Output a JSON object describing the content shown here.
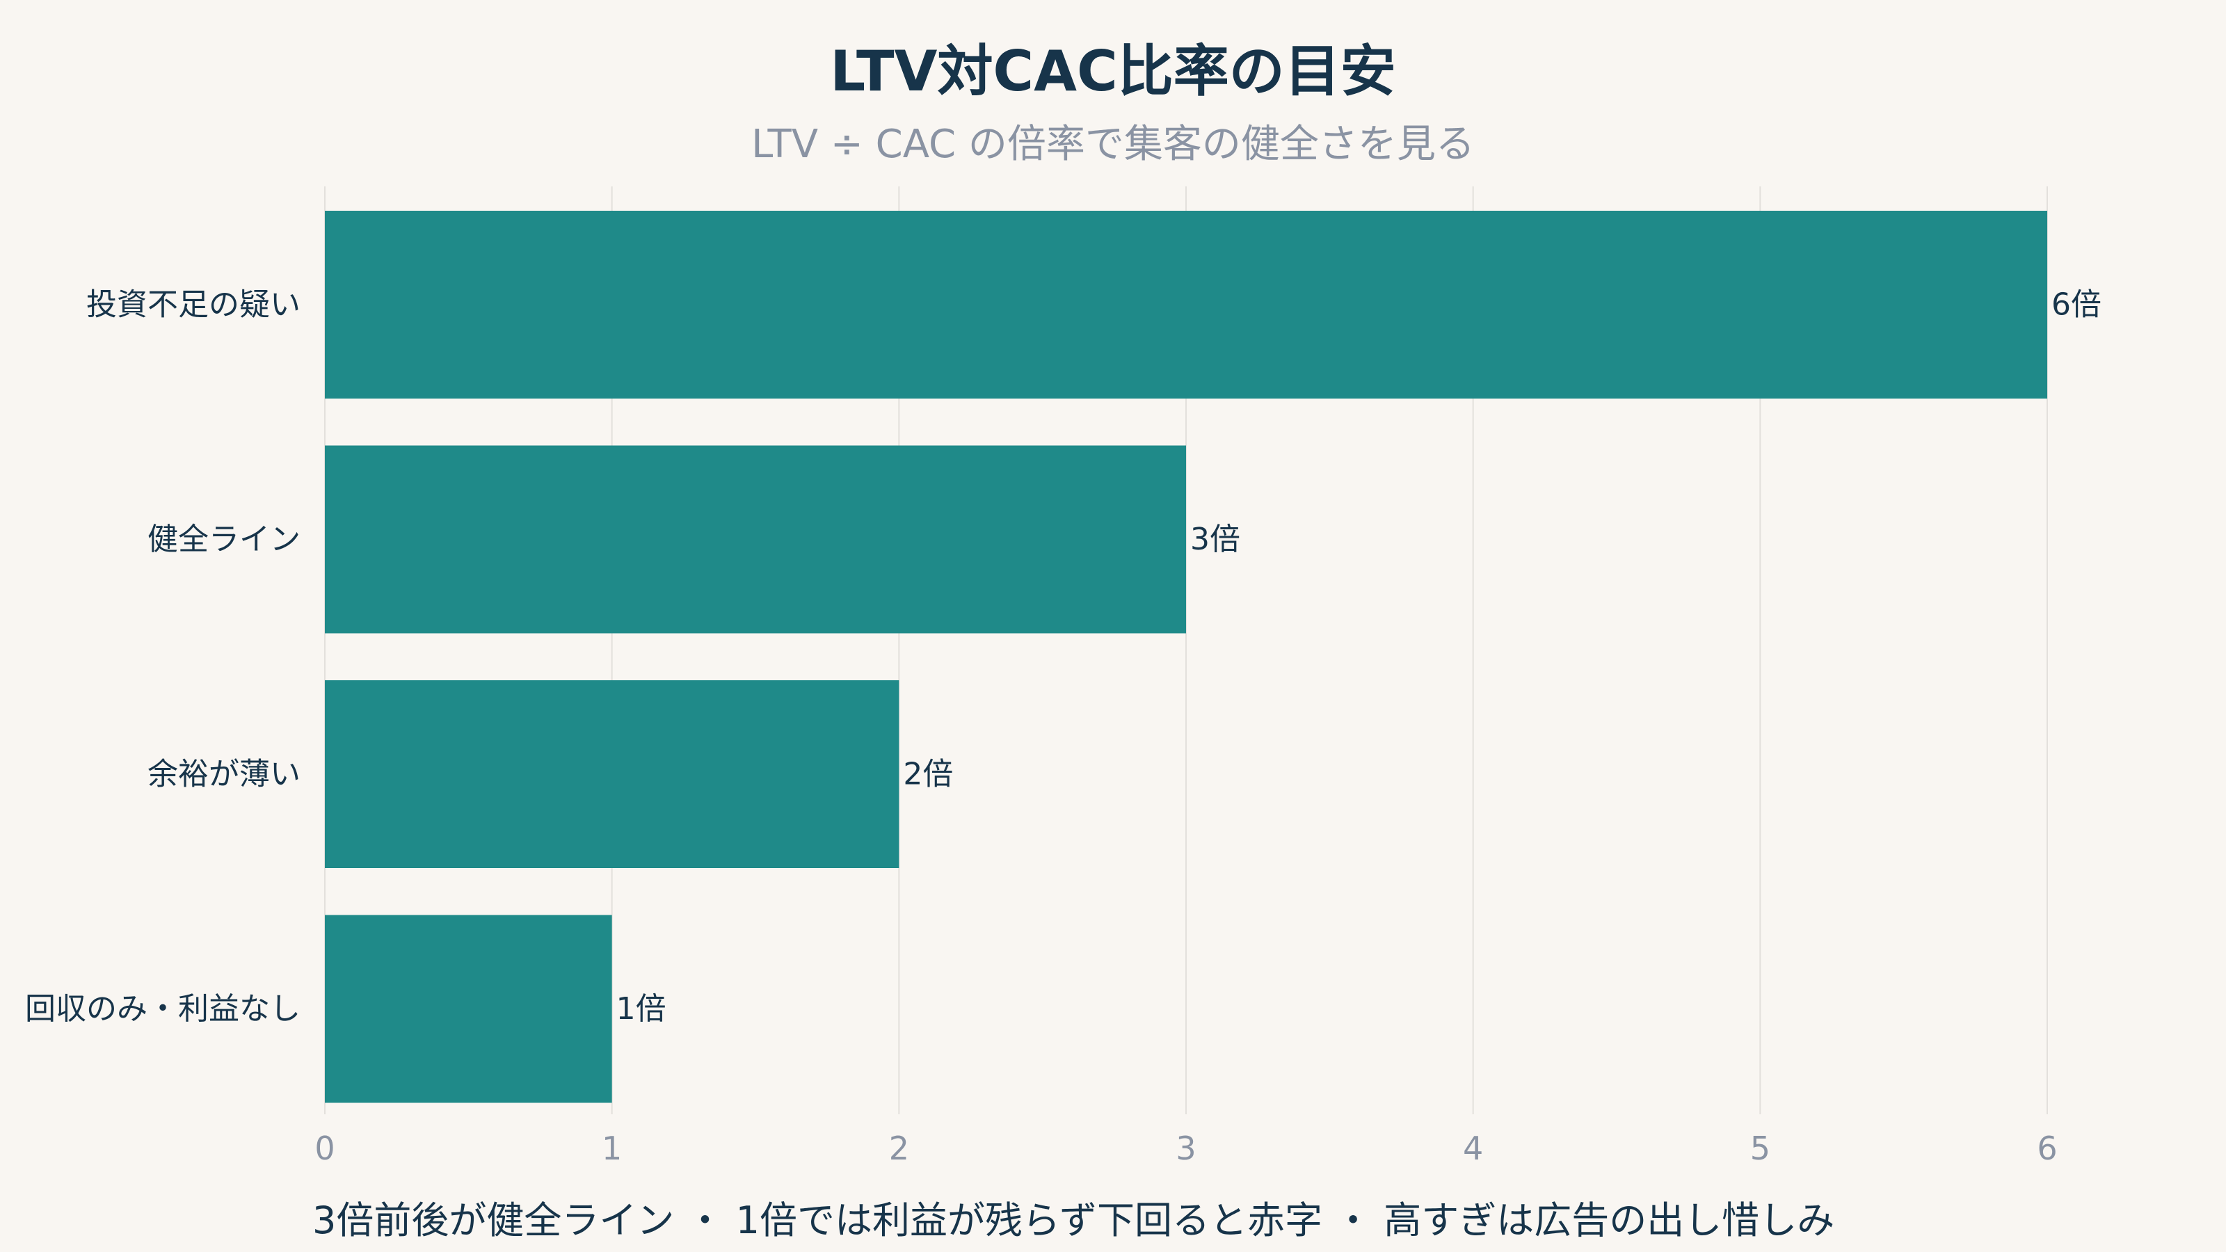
{
  "chart_data": {
    "type": "bar",
    "orientation": "horizontal",
    "title": "LTV対CAC比率の目安",
    "subtitle": "LTV ÷ CAC の倍率で集客の健全さを見る",
    "categories": [
      "投資不足の疑い",
      "健全ライン",
      "余裕が薄い",
      "回収のみ・利益なし"
    ],
    "values": [
      6,
      3,
      2,
      1
    ],
    "value_labels": [
      "6倍",
      "3倍",
      "2倍",
      "1倍"
    ],
    "xlim": [
      0,
      6
    ],
    "x_ticks": [
      "0",
      "1",
      "2",
      "3",
      "4",
      "5",
      "6"
    ],
    "grid": true,
    "bar_color": "#1f8a89",
    "footnote": "3倍前後が健全ライン ・ 1倍では利益が残らず下回ると赤字 ・ 高すぎは広告の出し惜しみ"
  }
}
